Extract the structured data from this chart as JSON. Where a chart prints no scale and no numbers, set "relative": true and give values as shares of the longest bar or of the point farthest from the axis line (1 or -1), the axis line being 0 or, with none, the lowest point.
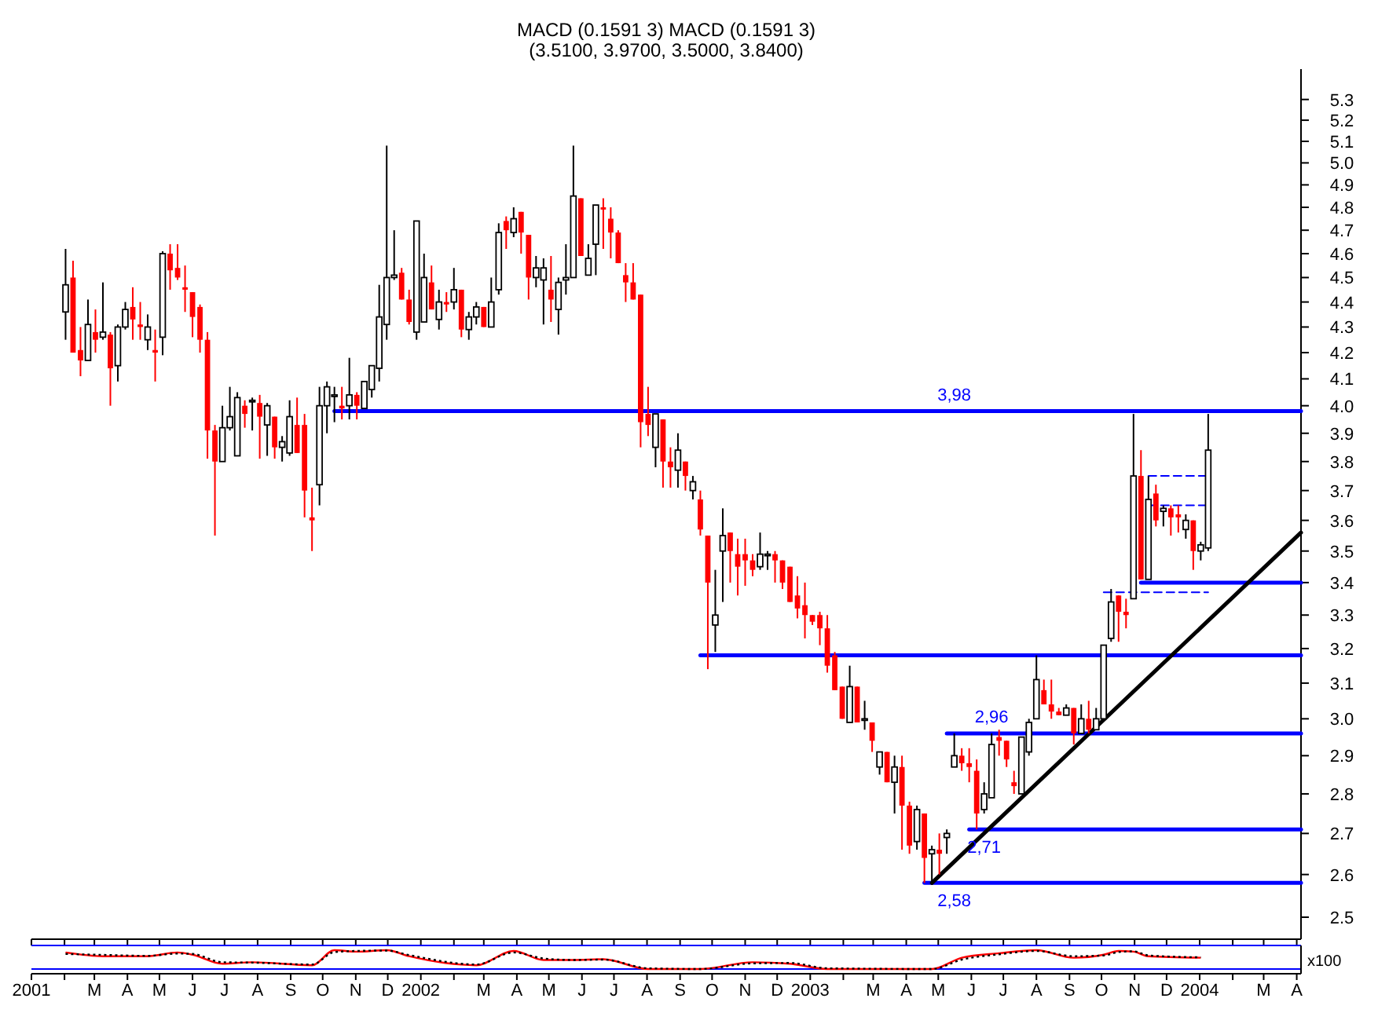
{
  "chart_data": [
    {
      "type": "candlestick",
      "title": "MACD (0.1591 3) MACD (0.1591 3)",
      "subtitle": "(3.5100, 3.9700, 3.5000, 3.8400)",
      "log": true,
      "tick_labels": "y",
      "xlim": [
        "2001-01-01",
        "2004-04-05"
      ],
      "xticks": [
        {
          "value": "2001-01",
          "label": null
        },
        {
          "value": "2001-02",
          "label": null
        },
        {
          "value": "2001-03",
          "label": null
        },
        {
          "value": "2001-04",
          "label": null
        },
        {
          "value": "2001-05",
          "label": null
        },
        {
          "value": "2001-06",
          "label": null
        },
        {
          "value": "2001-07",
          "label": null
        },
        {
          "value": "2001-08",
          "label": null
        },
        {
          "value": "2001-09",
          "label": null
        },
        {
          "value": "2001-10",
          "label": null
        },
        {
          "value": "2001-11",
          "label": null
        },
        {
          "value": "2001-12",
          "label": null
        },
        {
          "value": "2002-01",
          "label": null
        },
        {
          "value": "2002-02",
          "label": null
        },
        {
          "value": "2002-03",
          "label": null
        },
        {
          "value": "2002-04",
          "label": null
        },
        {
          "value": "2002-05",
          "label": null
        },
        {
          "value": "2002-06",
          "label": null
        },
        {
          "value": "2002-07",
          "label": null
        },
        {
          "value": "2002-08",
          "label": null
        },
        {
          "value": "2002-09",
          "label": null
        },
        {
          "value": "2002-10",
          "label": null
        },
        {
          "value": "2002-11",
          "label": null
        },
        {
          "value": "2002-12",
          "label": null
        },
        {
          "value": "2003-01",
          "label": null
        },
        {
          "value": "2003-02",
          "label": null
        },
        {
          "value": "2003-03",
          "label": null
        },
        {
          "value": "2003-04",
          "label": null
        },
        {
          "value": "2003-05",
          "label": null
        },
        {
          "value": "2003-06",
          "label": null
        },
        {
          "value": "2003-07",
          "label": null
        },
        {
          "value": "2003-08",
          "label": null
        },
        {
          "value": "2003-09",
          "label": null
        },
        {
          "value": "2003-10",
          "label": null
        },
        {
          "value": "2003-11",
          "label": null
        },
        {
          "value": "2003-12",
          "label": null
        },
        {
          "value": "2004-01",
          "label": null
        },
        {
          "value": "2004-02",
          "label": null
        },
        {
          "value": "2004-03",
          "label": null
        },
        {
          "value": "2004-04",
          "label": null
        }
      ],
      "ylim": [
        2.45,
        5.45
      ],
      "yticks": [
        2.5,
        2.6,
        2.7,
        2.8,
        2.9,
        {
          "value": 3,
          "label": "3.0"
        },
        3.1,
        3.2,
        3.3,
        3.4,
        3.5,
        3.6,
        3.7,
        3.8,
        3.9,
        {
          "value": 4,
          "label": "4.0"
        },
        4.1,
        4.2,
        4.3,
        4.4,
        4.5,
        4.6,
        4.7,
        4.8,
        4.9,
        {
          "value": 5,
          "label": "5.0"
        },
        5.1,
        5.2,
        5.3
      ],
      "x": [
        "2001-02-02",
        "2001-02-09",
        "2001-02-16",
        "2001-02-23",
        "2001-03-02",
        "2001-03-09",
        "2001-03-16",
        "2001-03-23",
        "2001-03-30",
        "2001-04-06",
        "2001-04-13",
        "2001-04-20",
        "2001-04-27",
        "2001-05-04",
        "2001-05-11",
        "2001-05-18",
        "2001-05-25",
        "2001-06-01",
        "2001-06-08",
        "2001-06-15",
        "2001-06-22",
        "2001-06-29",
        "2001-07-06",
        "2001-07-13",
        "2001-07-20",
        "2001-07-27",
        "2001-08-03",
        "2001-08-10",
        "2001-08-17",
        "2001-08-24",
        "2001-08-31",
        "2001-09-07",
        "2001-09-14",
        "2001-09-21",
        "2001-09-28",
        "2001-10-05",
        "2001-10-12",
        "2001-10-19",
        "2001-10-26",
        "2001-11-02",
        "2001-11-09",
        "2001-11-16",
        "2001-11-23",
        "2001-11-30",
        "2001-12-07",
        "2001-12-14",
        "2001-12-21",
        "2001-12-28",
        "2002-01-04",
        "2002-01-11",
        "2002-01-18",
        "2002-01-25",
        "2002-02-01",
        "2002-02-08",
        "2002-02-15",
        "2002-02-22",
        "2002-03-01",
        "2002-03-08",
        "2002-03-15",
        "2002-03-22",
        "2002-03-29",
        "2002-04-05",
        "2002-04-12",
        "2002-04-19",
        "2002-04-26",
        "2002-05-03",
        "2002-05-10",
        "2002-05-17",
        "2002-05-24",
        "2002-05-31",
        "2002-06-07",
        "2002-06-14",
        "2002-06-21",
        "2002-06-28",
        "2002-07-05",
        "2002-07-12",
        "2002-07-19",
        "2002-07-26",
        "2002-08-02",
        "2002-08-09",
        "2002-08-16",
        "2002-08-23",
        "2002-08-30",
        "2002-09-06",
        "2002-09-13",
        "2002-09-20",
        "2002-09-27",
        "2002-10-04",
        "2002-10-11",
        "2002-10-18",
        "2002-10-25",
        "2002-11-01",
        "2002-11-08",
        "2002-11-15",
        "2002-11-22",
        "2002-11-29",
        "2002-12-06",
        "2002-12-13",
        "2002-12-20",
        "2002-12-27",
        "2003-01-03",
        "2003-01-10",
        "2003-01-17",
        "2003-01-24",
        "2003-01-31",
        "2003-02-07",
        "2003-02-14",
        "2003-02-21",
        "2003-02-28",
        "2003-03-07",
        "2003-03-14",
        "2003-03-21",
        "2003-03-28",
        "2003-04-04",
        "2003-04-11",
        "2003-04-18",
        "2003-04-25",
        "2003-05-02",
        "2003-05-09",
        "2003-05-16",
        "2003-05-23",
        "2003-05-30",
        "2003-06-06",
        "2003-06-13",
        "2003-06-20",
        "2003-06-27",
        "2003-07-04",
        "2003-07-11",
        "2003-07-18",
        "2003-07-25",
        "2003-08-01",
        "2003-08-08",
        "2003-08-15",
        "2003-08-22",
        "2003-08-29",
        "2003-09-05",
        "2003-09-12",
        "2003-09-19",
        "2003-09-26",
        "2003-10-03",
        "2003-10-10",
        "2003-10-17",
        "2003-10-24",
        "2003-10-31",
        "2003-11-07",
        "2003-11-14",
        "2003-11-21",
        "2003-11-28",
        "2003-12-05",
        "2003-12-12",
        "2003-12-19",
        "2003-12-26",
        "2004-01-02",
        "2004-01-09"
      ],
      "ohlc": [
        [
          4.36,
          4.62,
          4.25,
          4.47
        ],
        [
          4.5,
          4.57,
          4.2,
          4.2
        ],
        [
          4.21,
          4.3,
          4.11,
          4.17
        ],
        [
          4.17,
          4.41,
          4.17,
          4.31
        ],
        [
          4.28,
          4.37,
          4.2,
          4.25
        ],
        [
          4.26,
          4.48,
          4.25,
          4.28
        ],
        [
          4.27,
          4.28,
          4.0,
          4.14
        ],
        [
          4.15,
          4.31,
          4.09,
          4.3
        ],
        [
          4.3,
          4.4,
          4.29,
          4.37
        ],
        [
          4.38,
          4.46,
          4.25,
          4.33
        ],
        [
          4.31,
          4.4,
          4.25,
          4.3
        ],
        [
          4.25,
          4.35,
          4.21,
          4.3
        ],
        [
          4.21,
          4.29,
          4.09,
          4.2
        ],
        [
          4.26,
          4.61,
          4.19,
          4.6
        ],
        [
          4.6,
          4.64,
          4.45,
          4.53
        ],
        [
          4.54,
          4.64,
          4.49,
          4.5
        ],
        [
          4.46,
          4.55,
          4.36,
          4.45
        ],
        [
          4.44,
          4.44,
          4.26,
          4.34
        ],
        [
          4.38,
          4.39,
          4.2,
          4.25
        ],
        [
          4.25,
          4.28,
          3.81,
          3.91
        ],
        [
          3.91,
          3.93,
          3.55,
          3.8
        ],
        [
          3.8,
          4.0,
          3.8,
          3.92
        ],
        [
          3.92,
          4.07,
          3.91,
          3.96
        ],
        [
          3.82,
          4.05,
          3.82,
          4.03
        ],
        [
          4.0,
          4.02,
          3.92,
          3.97
        ],
        [
          4.02,
          4.03,
          3.91,
          4.02
        ],
        [
          4.01,
          4.04,
          3.81,
          3.96
        ],
        [
          3.93,
          4.01,
          3.82,
          4.0
        ],
        [
          3.96,
          3.96,
          3.81,
          3.85
        ],
        [
          3.85,
          3.89,
          3.8,
          3.87
        ],
        [
          3.83,
          4.02,
          3.82,
          3.96
        ],
        [
          3.93,
          4.03,
          3.83,
          3.83
        ],
        [
          3.93,
          3.97,
          3.61,
          3.7
        ],
        [
          3.61,
          3.71,
          3.5,
          3.6
        ],
        [
          3.72,
          4.07,
          3.65,
          4.0
        ],
        [
          4.0,
          4.09,
          3.9,
          4.07
        ],
        [
          4.04,
          4.07,
          3.94,
          4.04
        ],
        [
          4.0,
          4.07,
          3.95,
          3.99
        ],
        [
          4.0,
          4.18,
          3.95,
          4.04
        ],
        [
          4.04,
          4.05,
          3.95,
          4.0
        ],
        [
          3.99,
          4.09,
          3.99,
          4.09
        ],
        [
          4.06,
          4.15,
          4.03,
          4.15
        ],
        [
          4.14,
          4.47,
          4.09,
          4.34
        ],
        [
          4.31,
          5.08,
          4.25,
          4.5
        ],
        [
          4.5,
          4.7,
          4.49,
          4.51
        ],
        [
          4.52,
          4.54,
          4.41,
          4.41
        ],
        [
          4.41,
          4.45,
          4.31,
          4.32
        ],
        [
          4.28,
          4.74,
          4.25,
          4.74
        ],
        [
          4.32,
          4.6,
          4.32,
          4.5
        ],
        [
          4.48,
          4.55,
          4.37,
          4.37
        ],
        [
          4.33,
          4.45,
          4.29,
          4.4
        ],
        [
          4.4,
          4.44,
          4.36,
          4.39
        ],
        [
          4.4,
          4.54,
          4.37,
          4.45
        ],
        [
          4.45,
          4.45,
          4.26,
          4.29
        ],
        [
          4.29,
          4.36,
          4.25,
          4.34
        ],
        [
          4.34,
          4.4,
          4.31,
          4.38
        ],
        [
          4.38,
          4.38,
          4.3,
          4.3
        ],
        [
          4.3,
          4.5,
          4.3,
          4.4
        ],
        [
          4.45,
          4.73,
          4.43,
          4.69
        ],
        [
          4.74,
          4.76,
          4.62,
          4.7
        ],
        [
          4.69,
          4.8,
          4.67,
          4.75
        ],
        [
          4.78,
          4.78,
          4.6,
          4.69
        ],
        [
          4.68,
          4.68,
          4.41,
          4.5
        ],
        [
          4.5,
          4.59,
          4.46,
          4.54
        ],
        [
          4.49,
          4.58,
          4.31,
          4.54
        ],
        [
          4.45,
          4.59,
          4.32,
          4.41
        ],
        [
          4.37,
          4.5,
          4.27,
          4.48
        ],
        [
          4.49,
          4.64,
          4.43,
          4.5
        ],
        [
          4.5,
          5.08,
          4.5,
          4.85
        ],
        [
          4.84,
          4.84,
          4.59,
          4.59
        ],
        [
          4.51,
          4.64,
          4.51,
          4.58
        ],
        [
          4.64,
          4.81,
          4.51,
          4.81
        ],
        [
          4.8,
          4.84,
          4.62,
          4.79
        ],
        [
          4.75,
          4.8,
          4.58,
          4.69
        ],
        [
          4.69,
          4.7,
          4.56,
          4.56
        ],
        [
          4.51,
          4.56,
          4.4,
          4.48
        ],
        [
          4.48,
          4.56,
          4.41,
          4.41
        ],
        [
          4.43,
          4.43,
          3.85,
          3.94
        ],
        [
          3.97,
          4.07,
          3.89,
          3.93
        ],
        [
          3.85,
          3.97,
          3.78,
          3.97
        ],
        [
          3.95,
          3.95,
          3.71,
          3.8
        ],
        [
          3.8,
          3.85,
          3.71,
          3.78
        ],
        [
          3.77,
          3.9,
          3.71,
          3.84
        ],
        [
          3.8,
          3.8,
          3.7,
          3.75
        ],
        [
          3.7,
          3.75,
          3.67,
          3.73
        ],
        [
          3.67,
          3.7,
          3.55,
          3.57
        ],
        [
          3.55,
          3.55,
          3.14,
          3.4
        ],
        [
          3.27,
          3.44,
          3.19,
          3.3
        ],
        [
          3.5,
          3.64,
          3.34,
          3.55
        ],
        [
          3.56,
          3.56,
          3.4,
          3.5
        ],
        [
          3.49,
          3.54,
          3.36,
          3.45
        ],
        [
          3.49,
          3.54,
          3.39,
          3.47
        ],
        [
          3.47,
          3.49,
          3.42,
          3.44
        ],
        [
          3.45,
          3.56,
          3.44,
          3.49
        ],
        [
          3.49,
          3.5,
          3.44,
          3.49
        ],
        [
          3.49,
          3.5,
          3.4,
          3.47
        ],
        [
          3.47,
          3.47,
          3.38,
          3.4
        ],
        [
          3.45,
          3.45,
          3.34,
          3.34
        ],
        [
          3.36,
          3.42,
          3.29,
          3.32
        ],
        [
          3.33,
          3.4,
          3.23,
          3.3
        ],
        [
          3.3,
          3.3,
          3.27,
          3.28
        ],
        [
          3.3,
          3.31,
          3.21,
          3.26
        ],
        [
          3.26,
          3.3,
          3.13,
          3.15
        ],
        [
          3.18,
          3.19,
          3.08,
          3.08
        ],
        [
          3.09,
          3.09,
          3.0,
          3.0
        ],
        [
          2.99,
          3.15,
          2.99,
          3.09
        ],
        [
          3.09,
          3.09,
          2.99,
          2.99
        ],
        [
          3.0,
          3.05,
          2.97,
          3.0
        ],
        [
          2.99,
          2.99,
          2.91,
          2.94
        ],
        [
          2.87,
          2.91,
          2.85,
          2.91
        ],
        [
          2.91,
          2.91,
          2.83,
          2.83
        ],
        [
          2.83,
          2.9,
          2.75,
          2.87
        ],
        [
          2.87,
          2.9,
          2.66,
          2.77
        ],
        [
          2.77,
          2.78,
          2.65,
          2.67
        ],
        [
          2.68,
          2.77,
          2.66,
          2.76
        ],
        [
          2.75,
          2.75,
          2.58,
          2.64
        ],
        [
          2.65,
          2.67,
          2.58,
          2.66
        ],
        [
          2.66,
          2.7,
          2.6,
          2.65
        ],
        [
          2.69,
          2.71,
          2.65,
          2.7
        ],
        [
          2.87,
          2.96,
          2.87,
          2.9
        ],
        [
          2.9,
          2.92,
          2.86,
          2.88
        ],
        [
          2.88,
          2.92,
          2.83,
          2.87
        ],
        [
          2.86,
          2.89,
          2.71,
          2.75
        ],
        [
          2.76,
          2.83,
          2.75,
          2.8
        ],
        [
          2.79,
          2.96,
          2.79,
          2.93
        ],
        [
          2.95,
          2.97,
          2.9,
          2.94
        ],
        [
          2.94,
          2.94,
          2.87,
          2.89
        ],
        [
          2.83,
          2.86,
          2.8,
          2.82
        ],
        [
          2.8,
          2.95,
          2.8,
          2.95
        ],
        [
          2.91,
          3.0,
          2.9,
          2.99
        ],
        [
          3.0,
          3.18,
          3.0,
          3.11
        ],
        [
          3.08,
          3.11,
          3.04,
          3.04
        ],
        [
          3.04,
          3.11,
          3.0,
          3.02
        ],
        [
          3.02,
          3.03,
          3.01,
          3.01
        ],
        [
          3.01,
          3.04,
          3.01,
          3.03
        ],
        [
          3.03,
          3.03,
          2.93,
          2.96
        ],
        [
          2.96,
          3.04,
          2.96,
          3.0
        ],
        [
          3.0,
          3.05,
          2.96,
          2.97
        ],
        [
          2.97,
          3.03,
          2.97,
          3.0
        ],
        [
          3.0,
          3.21,
          3.0,
          3.21
        ],
        [
          3.23,
          3.38,
          3.22,
          3.34
        ],
        [
          3.36,
          3.36,
          3.22,
          3.31
        ],
        [
          3.31,
          3.35,
          3.26,
          3.3
        ],
        [
          3.35,
          3.97,
          3.35,
          3.75
        ],
        [
          3.75,
          3.84,
          3.41,
          3.41
        ],
        [
          3.41,
          3.75,
          3.41,
          3.67
        ],
        [
          3.69,
          3.72,
          3.58,
          3.6
        ],
        [
          3.63,
          3.65,
          3.58,
          3.64
        ],
        [
          3.64,
          3.65,
          3.55,
          3.61
        ],
        [
          3.62,
          3.65,
          3.56,
          3.61
        ],
        [
          3.57,
          3.62,
          3.54,
          3.6
        ],
        [
          3.6,
          3.6,
          3.44,
          3.5
        ],
        [
          3.5,
          3.53,
          3.47,
          3.52
        ],
        [
          3.51,
          3.97,
          3.5,
          3.84
        ]
      ],
      "series": [
        {
          "type": "line",
          "color": "#0000ff",
          "x": [
            "2001-10-12",
            "2004-04-05"
          ],
          "values": [
            3.98,
            3.98
          ]
        },
        {
          "type": "line",
          "color": "#0000ff",
          "x": [
            "2002-09-20",
            "2004-04-05"
          ],
          "values": [
            3.18,
            3.18
          ]
        },
        {
          "type": "line",
          "color": "#0000ff",
          "x": [
            "2003-05-09",
            "2004-04-05"
          ],
          "values": [
            2.96,
            2.96
          ]
        },
        {
          "type": "line",
          "color": "#0000ff",
          "x": [
            "2003-05-30",
            "2004-04-05"
          ],
          "values": [
            2.71,
            2.71
          ]
        },
        {
          "type": "line",
          "color": "#0000ff",
          "x": [
            "2003-04-18",
            "2004-04-05"
          ],
          "values": [
            2.58,
            2.58
          ]
        },
        {
          "type": "line",
          "color": "#0000ff",
          "x": [
            "2003-11-07",
            "2004-04-05"
          ],
          "values": [
            3.4,
            3.4
          ]
        },
        {
          "type": "line",
          "color": "#0000ff",
          "line_style": "dashed",
          "x": [
            "2003-10-03",
            "2004-01-09"
          ],
          "values": [
            3.37,
            3.37
          ]
        },
        {
          "type": "line",
          "color": "#0000ff",
          "line_style": "dashed",
          "x": [
            "2003-11-14",
            "2004-01-09"
          ],
          "values": [
            3.75,
            3.75
          ]
        },
        {
          "type": "line",
          "color": "#0000ff",
          "line_style": "dashed",
          "x": [
            "2003-11-14",
            "2004-01-09"
          ],
          "values": [
            3.65,
            3.65
          ]
        },
        {
          "type": "line",
          "color": "#000000",
          "x": [
            "2003-04-25",
            "2004-04-05"
          ],
          "values": [
            2.58,
            3.56
          ]
        }
      ],
      "annotations": [
        {
          "text": "3,98",
          "x": "2003-05-16",
          "y": 3.98
        },
        {
          "text": "2,96",
          "x": "2003-06-20",
          "y": 2.96
        },
        {
          "text": "2,71",
          "x": "2003-06-13",
          "y": 2.71
        },
        {
          "text": "2,58",
          "x": "2003-05-16",
          "y": 2.58
        }
      ]
    },
    {
      "type": "line",
      "relative": true,
      "tick_labels": "x",
      "ylabel": "x100",
      "xlim": [
        "2001-01-01",
        "2004-04-05"
      ],
      "xticks": [
        {
          "value": "2001-01",
          "label": "2001"
        },
        {
          "value": "2001-02",
          "label": null
        },
        {
          "value": "2001-03",
          "label": "M"
        },
        {
          "value": "2001-04",
          "label": "A"
        },
        {
          "value": "2001-05",
          "label": "M"
        },
        {
          "value": "2001-06",
          "label": "J"
        },
        {
          "value": "2001-07",
          "label": "J"
        },
        {
          "value": "2001-08",
          "label": "A"
        },
        {
          "value": "2001-09",
          "label": "S"
        },
        {
          "value": "2001-10",
          "label": "O"
        },
        {
          "value": "2001-11",
          "label": "N"
        },
        {
          "value": "2001-12",
          "label": "D"
        },
        {
          "value": "2002-01",
          "label": "2002"
        },
        {
          "value": "2002-02",
          "label": null
        },
        {
          "value": "2002-03",
          "label": "M"
        },
        {
          "value": "2002-04",
          "label": "A"
        },
        {
          "value": "2002-05",
          "label": "M"
        },
        {
          "value": "2002-06",
          "label": "J"
        },
        {
          "value": "2002-07",
          "label": "J"
        },
        {
          "value": "2002-08",
          "label": "A"
        },
        {
          "value": "2002-09",
          "label": "S"
        },
        {
          "value": "2002-10",
          "label": "O"
        },
        {
          "value": "2002-11",
          "label": "N"
        },
        {
          "value": "2002-12",
          "label": "D"
        },
        {
          "value": "2003-01",
          "label": "2003"
        },
        {
          "value": "2003-02",
          "label": null
        },
        {
          "value": "2003-03",
          "label": "M"
        },
        {
          "value": "2003-04",
          "label": "A"
        },
        {
          "value": "2003-05",
          "label": "M"
        },
        {
          "value": "2003-06",
          "label": "J"
        },
        {
          "value": "2003-07",
          "label": "J"
        },
        {
          "value": "2003-08",
          "label": "A"
        },
        {
          "value": "2003-09",
          "label": "S"
        },
        {
          "value": "2003-10",
          "label": "O"
        },
        {
          "value": "2003-11",
          "label": "N"
        },
        {
          "value": "2003-12",
          "label": "D"
        },
        {
          "value": "2004-01",
          "label": "2004"
        },
        {
          "value": "2004-02",
          "label": null
        },
        {
          "value": "2004-03",
          "label": "M"
        },
        {
          "value": "2004-04",
          "label": "A"
        }
      ],
      "x": [
        "2001-02-02",
        "2001-03-09",
        "2001-04-20",
        "2001-05-18",
        "2001-06-01",
        "2001-06-29",
        "2001-07-27",
        "2001-09-21",
        "2001-10-12",
        "2001-11-02",
        "2001-11-30",
        "2001-12-21",
        "2002-02-22",
        "2002-03-29",
        "2002-04-26",
        "2002-05-24",
        "2002-06-21",
        "2002-08-02",
        "2002-09-20",
        "2002-11-08",
        "2002-12-13",
        "2003-01-17",
        "2003-04-25",
        "2003-05-23",
        "2003-06-27",
        "2003-08-01",
        "2003-09-05",
        "2003-10-03",
        "2003-10-17",
        "2003-10-31",
        "2003-11-14",
        "2004-01-02"
      ],
      "series": [
        {
          "color": "#ff0000",
          "values": [
            0.88,
            0.68,
            0.68,
            0.88,
            0.76,
            0.28,
            0.36,
            0.2,
            1,
            0.92,
            1,
            0.68,
            0.2,
            0.96,
            0.48,
            0.48,
            0.52,
            0,
            0,
            0.36,
            0.28,
            0,
            0,
            0.6,
            0.84,
            1,
            0.6,
            0.76,
            0.96,
            0.92,
            0.68,
            0.6
          ]
        },
        {
          "color": "#000000",
          "line_style": "dotted",
          "values": [
            0.8,
            0.75,
            0.7,
            0.82,
            0.8,
            0.36,
            0.34,
            0.24,
            0.9,
            0.96,
            0.98,
            0.74,
            0.24,
            0.88,
            0.56,
            0.48,
            0.5,
            0.04,
            0,
            0.3,
            0.32,
            0.04,
            0,
            0.5,
            0.78,
            0.96,
            0.68,
            0.72,
            0.9,
            0.94,
            0.72,
            0.62
          ]
        }
      ]
    }
  ]
}
